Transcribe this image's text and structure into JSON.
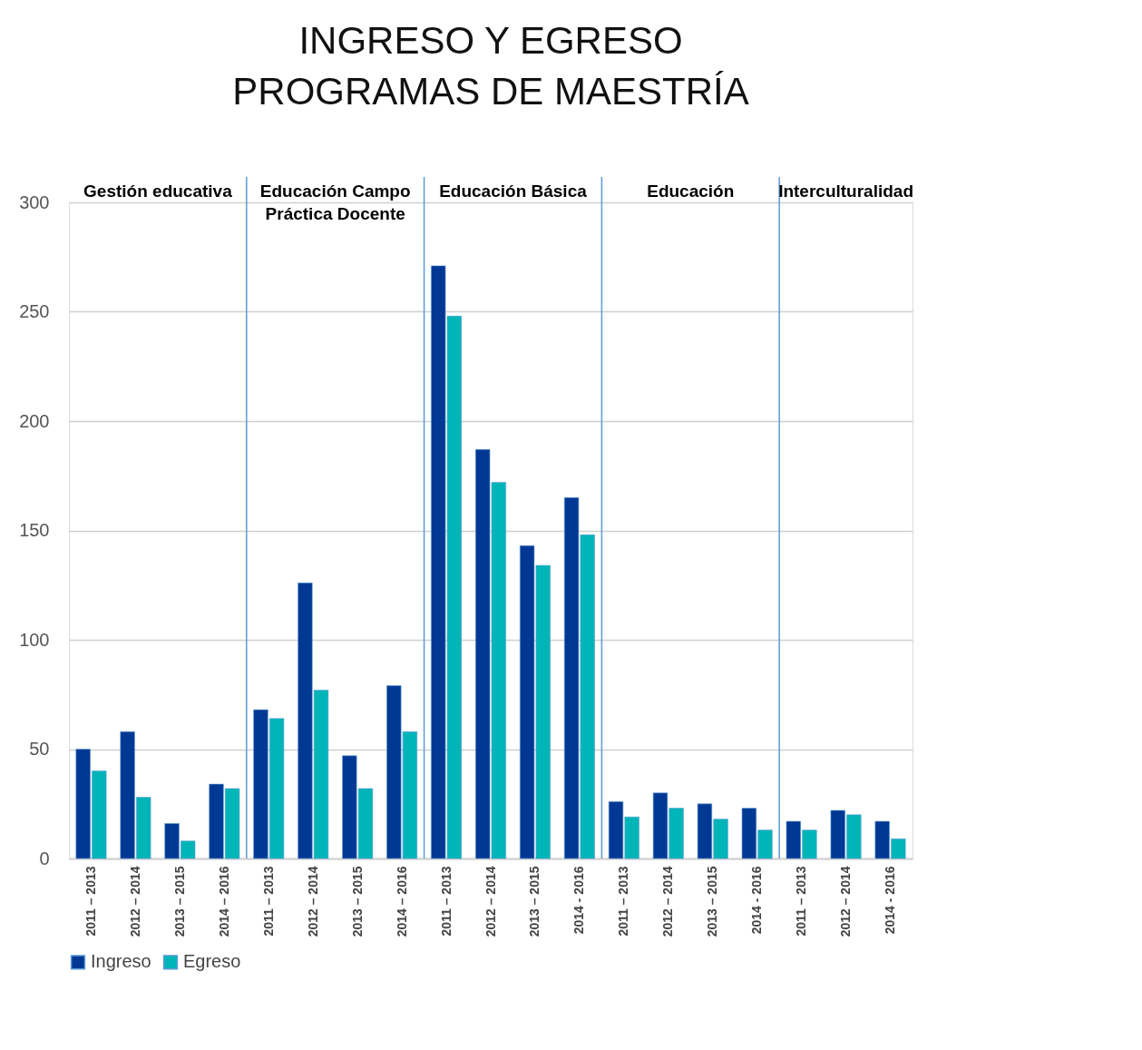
{
  "chart_data": {
    "type": "bar",
    "title": [
      "INGRESO Y EGRESO",
      "PROGRAMAS DE MAESTRÍA"
    ],
    "categories": [
      "2011 – 2013",
      "2012 – 2014",
      "2013 – 2015",
      "2014 – 2016",
      "2011 – 2013",
      "2012 – 2014",
      "2013 – 2015",
      "2014 – 2016",
      "2011 – 2013",
      "2012 – 2014",
      "2013 – 2015",
      "2014 - 2016",
      "2011 – 2013",
      "2012 – 2014",
      "2013 – 2015",
      "2014 - 2016",
      "2011 – 2013",
      "2012 – 2014",
      "2014 - 2016"
    ],
    "series": [
      {
        "name": "Ingreso",
        "color": "#003893",
        "values": [
          50,
          58,
          16,
          34,
          68,
          126,
          47,
          79,
          271,
          187,
          143,
          165,
          26,
          30,
          25,
          23,
          17,
          22,
          17
        ]
      },
      {
        "name": "Egreso",
        "color": "#00b5b8",
        "values": [
          40,
          28,
          8,
          32,
          64,
          77,
          32,
          58,
          248,
          172,
          134,
          148,
          19,
          23,
          18,
          13,
          13,
          20,
          9
        ]
      }
    ],
    "annotations": [
      "Gestión educativa",
      "Educación Campo\nPráctica Docente",
      "Educación Básica",
      "Educación",
      "Interculturalidad"
    ],
    "ylim": [
      0,
      300
    ],
    "yticks": [
      0,
      50,
      100,
      150,
      200,
      250,
      300
    ],
    "grid": "y",
    "legend": "bottom"
  }
}
